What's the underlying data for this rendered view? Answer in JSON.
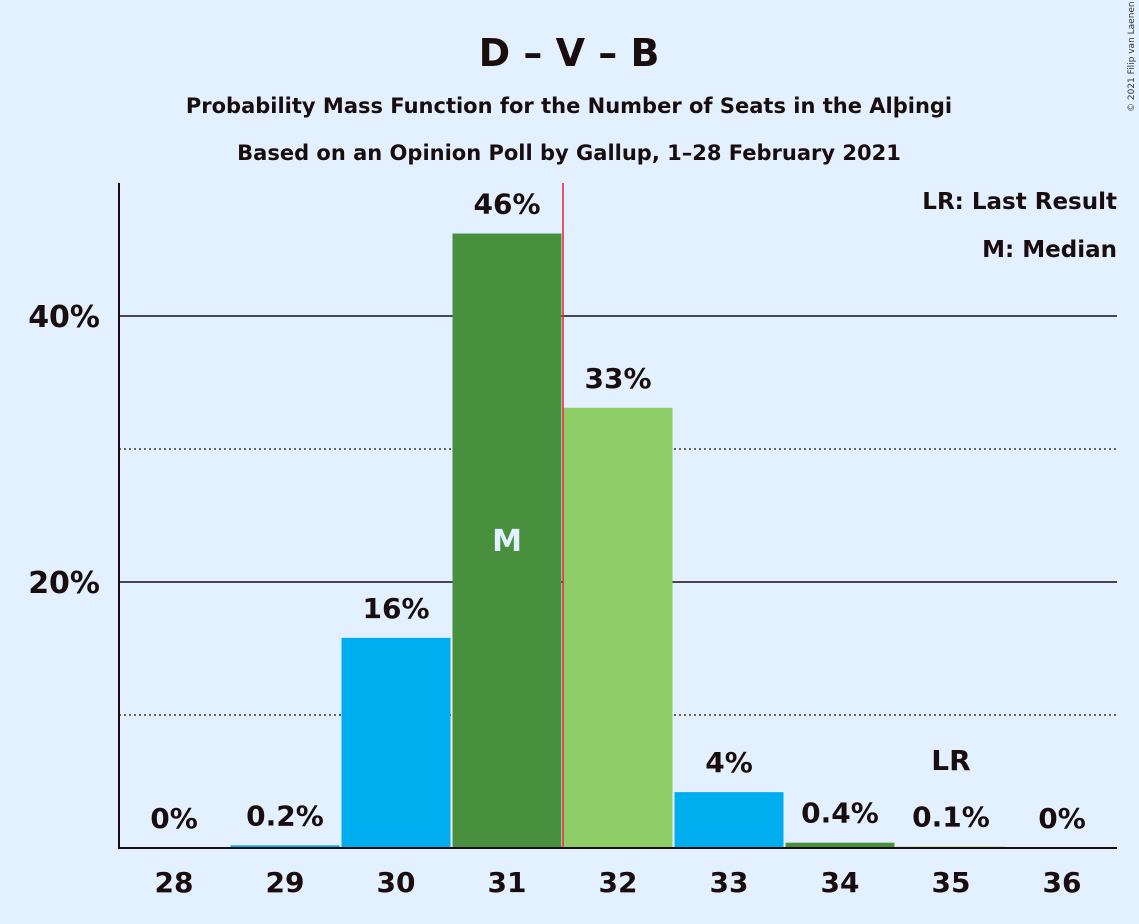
{
  "chart_data": {
    "type": "bar",
    "title": "D – V – B",
    "subtitle_1": "Probability Mass Function for the Number of Seats in the Alþingi",
    "subtitle_2": "Based on an Opinion Poll by Gallup, 1–28 February 2021",
    "copyright": "© 2021 Filip van Laenen",
    "categories": [
      "28",
      "29",
      "30",
      "31",
      "32",
      "33",
      "34",
      "35",
      "36"
    ],
    "values": [
      0,
      0.2,
      15.8,
      46.2,
      33.1,
      4.2,
      0.4,
      0.1,
      0
    ],
    "labels": [
      "0%",
      "0.2%",
      "16%",
      "46%",
      "33%",
      "4%",
      "0.4%",
      "0.1%",
      "0%"
    ],
    "bar_colors": [
      "#00adee",
      "#00adee",
      "#00adee",
      "#488f3e",
      "#8fce66",
      "#00adee",
      "#488f3e",
      "#8fce66",
      "#00adee"
    ],
    "ylim": [
      0,
      50
    ],
    "yticks": [
      20,
      40
    ],
    "ytick_labels": [
      "20%",
      "40%"
    ],
    "minor_gridlines": [
      10,
      30
    ],
    "median_category": "31",
    "median_marker": "M",
    "last_result_category": "35",
    "last_result_marker": "LR",
    "median_line_between": [
      "31",
      "32"
    ],
    "median_line_color": "#e8212e",
    "legend": [
      "LR: Last Result",
      "M: Median"
    ],
    "legend_position": "top-right"
  }
}
